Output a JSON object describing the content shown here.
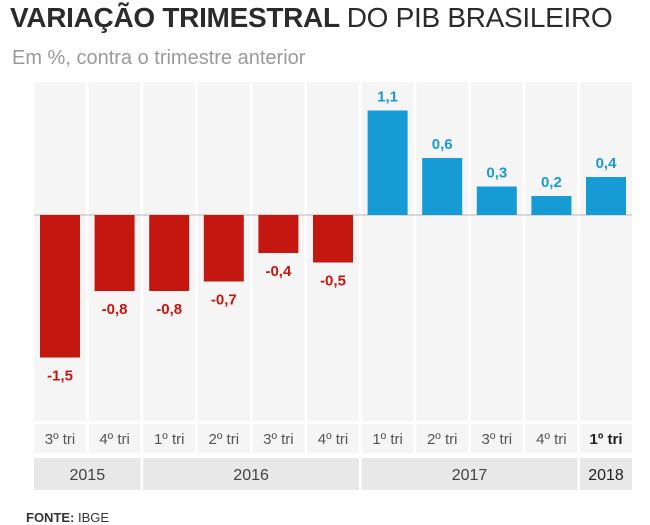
{
  "title_bold": "VARIAÇÃO TRIMESTRAL",
  "title_light": "DO PIB BRASILEIRO",
  "subtitle": "Em %, contra o trimestre anterior",
  "source_label": "FONTE:",
  "source_value": "IBGE",
  "colors": {
    "negative": "#c3170f",
    "positive": "#169bd5",
    "column_bg": "#f5f5f5",
    "year_bg": "#e8e8e8",
    "tick_text": "#555555",
    "tick_text_latest": "#222222"
  },
  "chart_data": {
    "type": "bar",
    "title": "VARIAÇÃO TRIMESTRAL DO PIB BRASILEIRO",
    "subtitle": "Em %, contra o trimestre anterior",
    "categories": [
      "3º tri",
      "4º tri",
      "1º tri",
      "2º tri",
      "3º tri",
      "4º tri",
      "1º tri",
      "2º tri",
      "3º tri",
      "4º tri",
      "1º tri"
    ],
    "values": [
      -1.5,
      -0.8,
      -0.8,
      -0.7,
      -0.4,
      -0.5,
      1.1,
      0.6,
      0.3,
      0.2,
      0.4
    ],
    "value_labels": [
      "-1,5",
      "-0,8",
      "-0,8",
      "-0,7",
      "-0,4",
      "-0,5",
      "1,1",
      "0,6",
      "0,3",
      "0,2",
      "0,4"
    ],
    "year_groups": [
      {
        "label": "2015",
        "count": 2
      },
      {
        "label": "2016",
        "count": 4
      },
      {
        "label": "2017",
        "count": 4
      },
      {
        "label": "2018",
        "count": 1
      }
    ],
    "ylim": [
      -2.15,
      1.4
    ],
    "grid": false,
    "legend": "none"
  }
}
